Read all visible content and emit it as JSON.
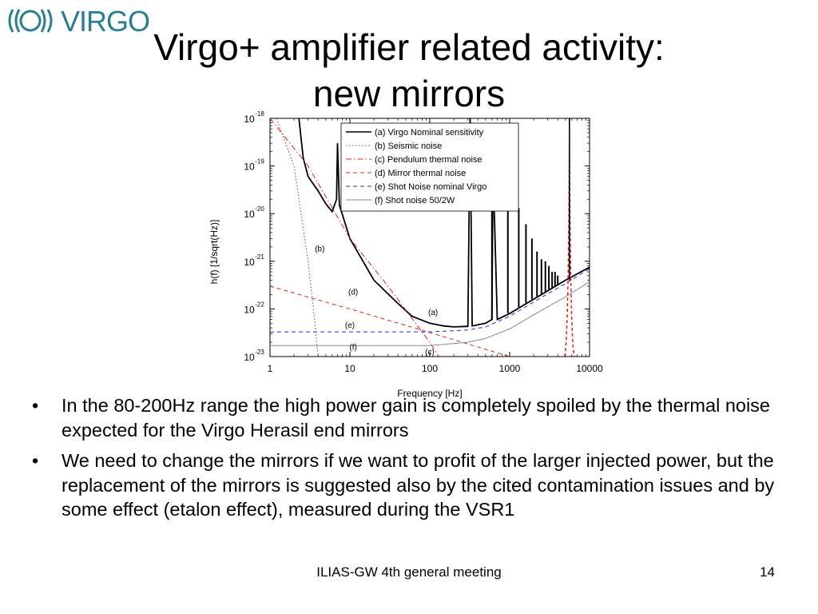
{
  "logo": {
    "text": "VIRGO",
    "icon": "virgo-wave-logo"
  },
  "slide": {
    "title_line1": "Virgo+ amplifier related activity:",
    "title_line2": "new mirrors",
    "bullets": [
      "In the 80-200Hz range the high power gain is completely spoiled by the thermal noise expected for the Virgo Herasil end mirrors",
      "We need to change the mirrors if we want to profit of the larger injected power, but the replacement of the mirrors is suggested also by the cited contamination issues and by some effect (etalon effect), measured during the VSR1"
    ],
    "footer_text": "ILIAS-GW 4th general meeting",
    "page_number": "14"
  },
  "chart_data": {
    "type": "line",
    "xlabel": "Frequency [Hz]",
    "ylabel": "h(f) [1/sqrt(Hz)]",
    "xscale": "log",
    "yscale": "log",
    "xlim": [
      1,
      10000
    ],
    "ylim": [
      1e-23,
      1e-18
    ],
    "x_ticks": [
      "1",
      "10",
      "100",
      "1000",
      "10000"
    ],
    "y_ticks": [
      {
        "base": "10",
        "exp": "-18",
        "value": 1e-18
      },
      {
        "base": "10",
        "exp": "-19",
        "value": 1e-19
      },
      {
        "base": "10",
        "exp": "-20",
        "value": 1e-20
      },
      {
        "base": "10",
        "exp": "-21",
        "value": 1e-21
      },
      {
        "base": "10",
        "exp": "-22",
        "value": 1e-22
      },
      {
        "base": "10",
        "exp": "-23",
        "value": 1e-23
      }
    ],
    "legend_position": "top-right",
    "series": [
      {
        "name": "(a) Virgo Nominal sensitivity",
        "tag": "(a)",
        "color": "#000000",
        "dash": "solid",
        "x": [
          2.3,
          2.6,
          3,
          4,
          5,
          6,
          6.8,
          7,
          7.4,
          10,
          20,
          40,
          60,
          100,
          150,
          200,
          300,
          320,
          340,
          500,
          600,
          620,
          700,
          1000,
          2000,
          3000,
          5000,
          10000
        ],
        "y": [
          1e-18,
          1.5e-19,
          6e-20,
          3e-20,
          1.6e-20,
          1.1e-20,
          2e-20,
          3e-19,
          1.5e-20,
          3e-21,
          4e-22,
          1.3e-22,
          7e-23,
          5e-23,
          4.4e-23,
          4.2e-23,
          4.3e-23,
          1e-18,
          4.4e-23,
          5e-23,
          6e-23,
          1e-19,
          6e-23,
          8e-23,
          1.6e-22,
          2.4e-22,
          4e-22,
          7.5e-22
        ]
      },
      {
        "name": "(b) Seismic noise",
        "tag": "(b)",
        "color": "#b03030",
        "dash": "dot",
        "x": [
          1.2,
          2,
          3,
          3.5,
          4
        ],
        "y": [
          1e-18,
          1e-19,
          1e-21,
          1e-22,
          1e-23
        ]
      },
      {
        "name": "(c) Pendulum thermal noise",
        "tag": "(c)",
        "color": "#e02020",
        "dash": "dashdot",
        "x": [
          1,
          3,
          10,
          30,
          100,
          130
        ],
        "y": [
          1e-18,
          1e-19,
          3e-21,
          3e-22,
          2e-23,
          1e-23
        ]
      },
      {
        "name": "(d) Mirror thermal noise",
        "tag": "(d)",
        "color": "#e02020",
        "dash": "dash",
        "x": [
          1,
          10,
          100,
          1000
        ],
        "y": [
          3e-22,
          1e-22,
          3.2e-23,
          1e-23
        ]
      },
      {
        "name": "(e) Shot Noise nominal Virgo",
        "tag": "(e)",
        "color": "#2030c0",
        "dash": "dash",
        "x": [
          1,
          100,
          300,
          500,
          1000,
          2000,
          5000,
          10000
        ],
        "y": [
          3.3e-23,
          3.3e-23,
          3.6e-23,
          4.2e-23,
          7e-23,
          1.4e-22,
          3.4e-22,
          7e-22
        ]
      },
      {
        "name": "(f) Shot noise 50/2W",
        "tag": "(f)",
        "color": "#888888",
        "dash": "solid",
        "x": [
          1,
          100,
          300,
          500,
          1000,
          2000,
          5000,
          10000
        ],
        "y": [
          1.7e-23,
          1.7e-23,
          2e-23,
          2.4e-23,
          3.8e-23,
          7.5e-23,
          1.8e-22,
          3.7e-22
        ]
      }
    ],
    "violin_peaks": {
      "color": "#000000",
      "x": [
        600,
        950,
        1300,
        1600,
        1900,
        2200,
        2500,
        2800,
        3100,
        3400,
        3700,
        4000
      ],
      "y": [
        1e-19,
        3e-20,
        1.3e-20,
        6e-21,
        3e-21,
        1.6e-21,
        1.1e-21,
        1e-21,
        8e-22,
        6e-22,
        6e-22,
        5e-22
      ]
    },
    "resonance_peak": {
      "color": "#e02020",
      "x": 5600,
      "y_top": 1e-18
    },
    "curve_labels": [
      {
        "text": "(b)",
        "x": 4.2,
        "y": 1.6e-21
      },
      {
        "text": "(d)",
        "x": 11,
        "y": 2e-22
      },
      {
        "text": "(a)",
        "x": 110,
        "y": 7.5e-23
      },
      {
        "text": "(e)",
        "x": 10,
        "y": 4e-23
      },
      {
        "text": "(f)",
        "x": 11,
        "y": 1.4e-23
      },
      {
        "text": "(c)",
        "x": 100,
        "y": 1.1e-23
      }
    ]
  }
}
